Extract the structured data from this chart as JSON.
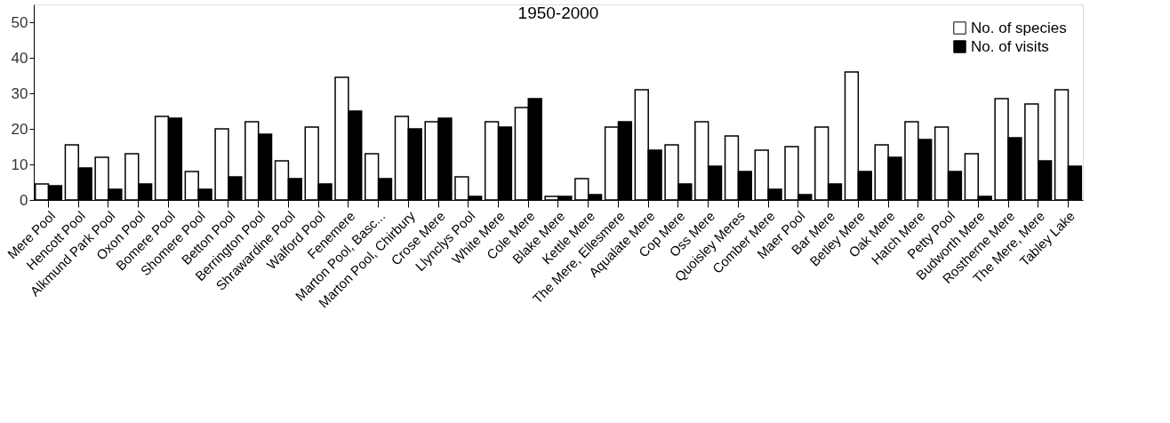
{
  "chart_data": {
    "type": "bar",
    "title": "1950-2000",
    "categories": [
      "Mere Pool",
      "Hencott Pool",
      "Alkmund Park Pool",
      "Oxon Pool",
      "Bomere Pool",
      "Shomere Pool",
      "Betton Pool",
      "Berrington Pool",
      "Shrawardine Pool",
      "Walford Pool",
      "Fenemere",
      "Marton Pool, Basc...",
      "Marton Pool, Chirbury",
      "Crose Mere",
      "Llynclys Pool",
      "White Mere",
      "Cole Mere",
      "Blake Mere",
      "Kettle Mere",
      "The Mere, Ellesmere",
      "Aqualate Mere",
      "Cop Mere",
      "Oss Mere",
      "Quoisley Meres",
      "Comber Mere",
      "Maer Pool",
      "Bar Mere",
      "Betley Mere",
      "Oak Mere",
      "Hatch Mere",
      "Petty Pool",
      "Budworth Mere",
      "Rostherne Mere",
      "The Mere, Mere",
      "Tabley Lake"
    ],
    "series": [
      {
        "name": "No. of species",
        "color": "#ffffff",
        "values": [
          4.5,
          15.5,
          12,
          13,
          23.5,
          8,
          20,
          22,
          11,
          20.5,
          34.5,
          13,
          23.5,
          22,
          6.5,
          22,
          26,
          1,
          6,
          20.5,
          31,
          15.5,
          22,
          18,
          14,
          15,
          20.5,
          36,
          15.5,
          22,
          20.5,
          13,
          28.5,
          27,
          31
        ]
      },
      {
        "name": "No. of visits",
        "color": "#000000",
        "values": [
          4,
          9,
          3,
          4.5,
          23,
          3,
          6.5,
          18.5,
          6,
          4.5,
          25,
          6,
          20,
          23,
          1,
          20.5,
          28.5,
          1,
          1.5,
          22,
          14,
          4.5,
          9.5,
          8,
          3,
          1.5,
          4.5,
          8,
          12,
          17,
          8,
          1,
          17.5,
          11,
          9.5
        ]
      }
    ],
    "ylim": [
      0,
      55
    ],
    "yticks": [
      0,
      10,
      20,
      30,
      40,
      50
    ],
    "grid": false,
    "legend": "top right"
  }
}
